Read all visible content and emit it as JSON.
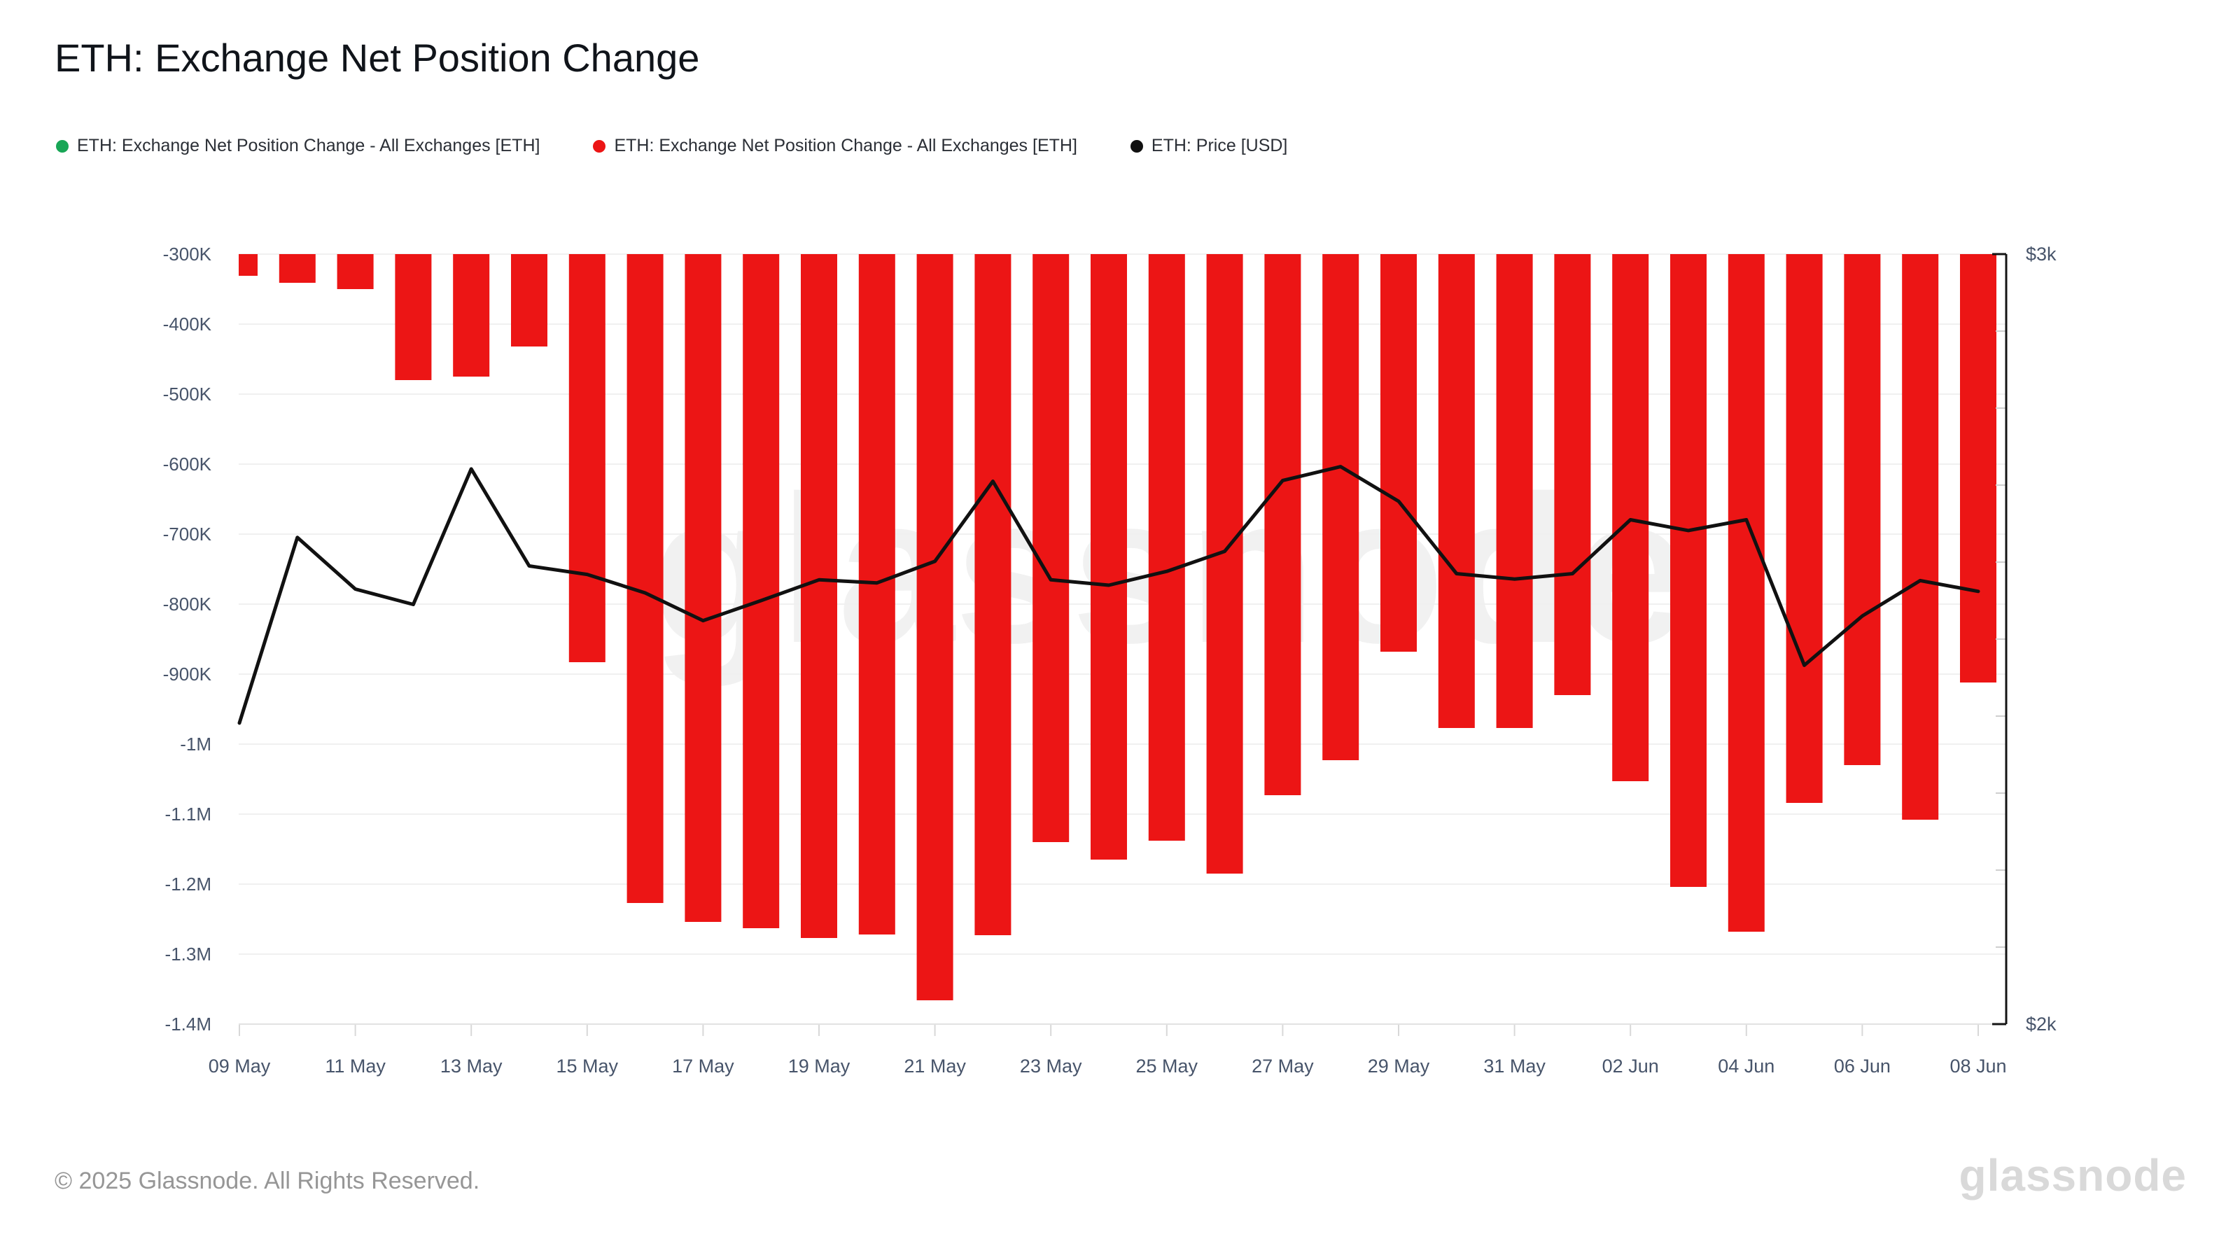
{
  "page": {
    "title": "ETH: Exchange Net Position Change"
  },
  "legend": {
    "items": [
      {
        "label": "ETH: Exchange Net Position Change - All Exchanges [ETH]",
        "color": "#18a656",
        "icon": "dot"
      },
      {
        "label": "ETH: Exchange Net Position Change - All Exchanges [ETH]",
        "color": "#ec1515",
        "icon": "dot"
      },
      {
        "label": "ETH: Price [USD]",
        "color": "#111111",
        "icon": "dot"
      }
    ]
  },
  "watermark": {
    "text": "glassnode"
  },
  "footer": {
    "copyright": "© 2025 Glassnode. All Rights Reserved.",
    "logo_text": "glassnode"
  },
  "chart_data": {
    "type": "bar",
    "title": "ETH: Exchange Net Position Change",
    "grid": "horizontal",
    "legend_position": "top-left",
    "x": [
      "09 May",
      "10 May",
      "11 May",
      "12 May",
      "13 May",
      "14 May",
      "15 May",
      "16 May",
      "17 May",
      "18 May",
      "19 May",
      "20 May",
      "21 May",
      "22 May",
      "23 May",
      "24 May",
      "25 May",
      "26 May",
      "27 May",
      "28 May",
      "29 May",
      "30 May",
      "31 May",
      "01 Jun",
      "02 Jun",
      "03 Jun",
      "04 Jun",
      "05 Jun",
      "06 Jun",
      "07 Jun",
      "08 Jun"
    ],
    "x_axis": {
      "labeled_indices": [
        0,
        2,
        4,
        6,
        8,
        10,
        12,
        14,
        16,
        18,
        20,
        22,
        24,
        26,
        28,
        30
      ]
    },
    "left_axis": {
      "label": "ETH",
      "min": -1400000,
      "max": -300000,
      "tick_labels": [
        "-300K",
        "-400K",
        "-500K",
        "-600K",
        "-700K",
        "-800K",
        "-900K",
        "-1M",
        "-1.1M",
        "-1.2M",
        "-1.3M",
        "-1.4M"
      ],
      "tick_values": [
        -300000,
        -400000,
        -500000,
        -600000,
        -700000,
        -800000,
        -900000,
        -1000000,
        -1100000,
        -1200000,
        -1300000,
        -1400000
      ]
    },
    "right_axis": {
      "label": "USD",
      "min": 2000,
      "max": 3000,
      "tick_labels": [
        "$3k",
        "$2k"
      ],
      "tick_values": [
        3000,
        2000
      ]
    },
    "series": [
      {
        "name": "ETH: Exchange Net Position Change - All Exchanges [ETH]",
        "type": "bar",
        "axis": "left",
        "color": "#ec1515",
        "values": [
          -331000,
          -341000,
          -350000,
          -480000,
          -475000,
          -432000,
          -883000,
          -1227000,
          -1254000,
          -1263000,
          -1277000,
          -1272000,
          -1366000,
          -1273000,
          -1140000,
          -1165000,
          -1138000,
          -1185000,
          -1073000,
          -1023000,
          -868000,
          -977000,
          -977000,
          -930000,
          -1053000,
          -1204000,
          -1268000,
          -1084000,
          -1030000,
          -1108000,
          -912000
        ]
      },
      {
        "name": "ETH: Price [USD]",
        "type": "line",
        "axis": "right",
        "color": "#111111",
        "values": [
          2391,
          2632,
          2565,
          2545,
          2721,
          2595,
          2584,
          2560,
          2524,
          2550,
          2577,
          2573,
          2601,
          2705,
          2577,
          2570,
          2588,
          2614,
          2706,
          2724,
          2679,
          2585,
          2578,
          2585,
          2655,
          2641,
          2655,
          2466,
          2530,
          2576,
          2562
        ]
      }
    ]
  }
}
